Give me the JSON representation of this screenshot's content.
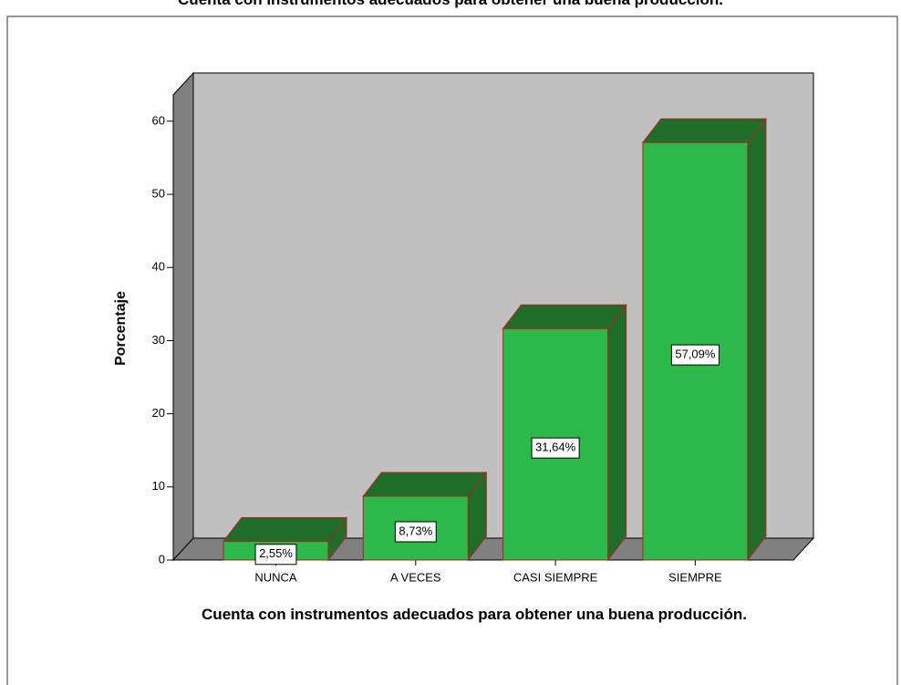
{
  "chart_data": {
    "type": "bar3d",
    "title": "Cuenta con instrumentos adecuados para obtener una buena producción.",
    "xlabel": "Cuenta con instrumentos adecuados para obtener una buena producción.",
    "ylabel": "Porcentaje",
    "categories": [
      "NUNCA",
      "A VECES",
      "CASI SIEMPRE",
      "SIEMPRE"
    ],
    "values": [
      2.55,
      8.73,
      31.64,
      57.09
    ],
    "value_labels": [
      "2,55%",
      "8,73%",
      "31,64%",
      "57,09%"
    ],
    "color": "#2db84a",
    "ylim": [
      0,
      63.6
    ],
    "yticks": [
      0,
      10,
      20,
      30,
      40,
      50,
      60
    ]
  }
}
